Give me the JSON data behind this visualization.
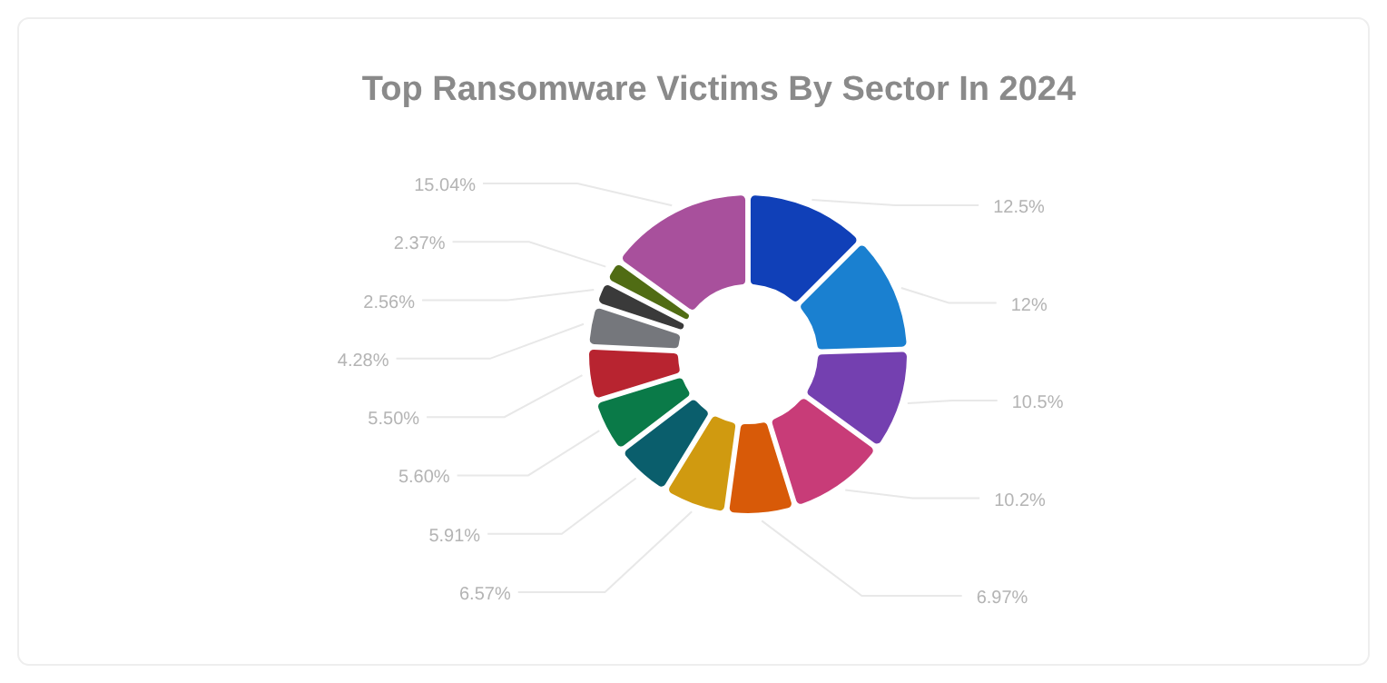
{
  "chart_data": {
    "type": "donut",
    "title": "Top Ransomware Victims By Sector In 2024",
    "categories": [
      null,
      null,
      null,
      null,
      null,
      null,
      null,
      null,
      null,
      null,
      null,
      null,
      null
    ],
    "values": [
      12.5,
      12,
      10.5,
      10.2,
      6.97,
      6.57,
      5.91,
      5.6,
      5.5,
      4.28,
      2.56,
      2.37,
      15.04
    ],
    "value_labels": [
      "12.5%",
      "12%",
      "10.5%",
      "10.2%",
      "6.97%",
      "6.57%",
      "5.91%",
      "5.60%",
      "5.50%",
      "4.28%",
      "2.56%",
      "2.37%",
      "15.04%"
    ],
    "colors": [
      "#1040b8",
      "#1a80d0",
      "#7440b0",
      "#c83c78",
      "#d85a08",
      "#d09a10",
      "#0a5e6c",
      "#0a7a48",
      "#b82430",
      "#75777c",
      "#3a3a3a",
      "#506c14",
      "#a8509c"
    ]
  }
}
